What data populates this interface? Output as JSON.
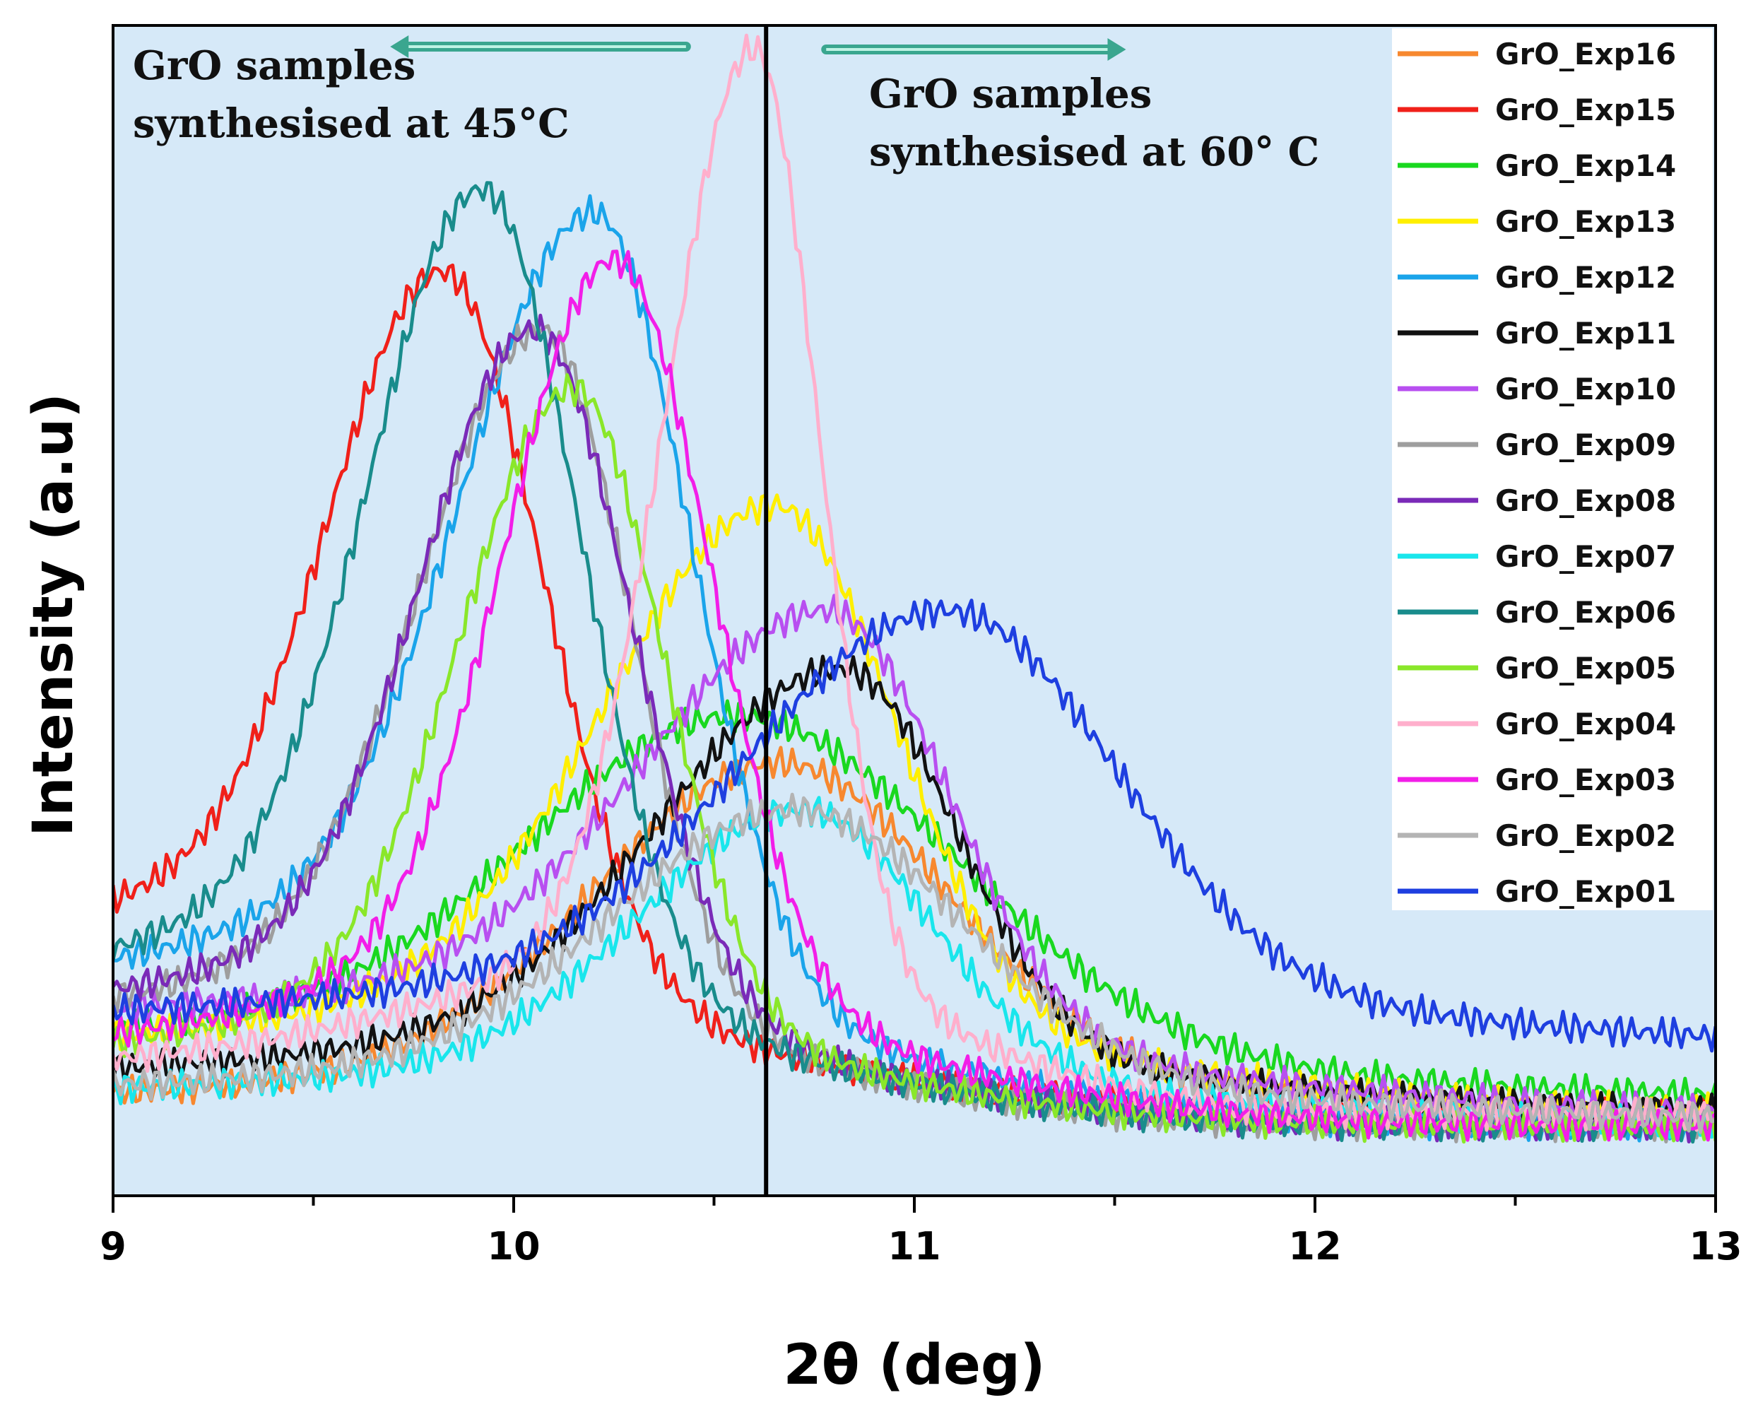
{
  "chart_data": {
    "type": "line",
    "title": "",
    "xlabel": "2θ (deg)",
    "ylabel": "Intensity (a.u)",
    "xlim": [
      9,
      13
    ],
    "ylim": [
      0,
      100
    ],
    "xticks": [
      "9",
      "10",
      "11",
      "12",
      "13"
    ],
    "divider_x": 10.63,
    "background": "#d6e9f8",
    "annotations": [
      {
        "name": "annotation-45c",
        "lines": [
          "GrO samples",
          "synthesised at 45°C"
        ],
        "arrow": "left",
        "arrow_from": 10.43,
        "arrow_to": 9.72
      },
      {
        "name": "annotation-60c",
        "lines": [
          "GrO samples",
          "synthesised at 60° C"
        ],
        "arrow": "right",
        "arrow_from": 10.78,
        "arrow_to": 11.5
      }
    ],
    "legend_position": "top-right",
    "series": [
      {
        "name": "GrO_Exp16",
        "color": "#f7882f",
        "peak_x": 10.66,
        "peak_y": 37,
        "sigma_left": 0.45,
        "sigma_right": 0.42,
        "base": 7,
        "tail": 6
      },
      {
        "name": "GrO_Exp15",
        "color": "#f0201a",
        "peak_x": 9.82,
        "peak_y": 79,
        "sigma_left": 0.28,
        "sigma_right": 0.25,
        "base": 20,
        "tail": 7
      },
      {
        "name": "GrO_Exp14",
        "color": "#19d81f",
        "peak_x": 10.55,
        "peak_y": 41,
        "sigma_left": 0.5,
        "sigma_right": 0.55,
        "base": 12,
        "tail": 7
      },
      {
        "name": "GrO_Exp13",
        "color": "#ffef00",
        "peak_x": 10.65,
        "peak_y": 59,
        "sigma_left": 0.42,
        "sigma_right": 0.3,
        "base": 11,
        "tail": 7
      },
      {
        "name": "GrO_Exp12",
        "color": "#1aa4ea",
        "peak_x": 10.2,
        "peak_y": 84,
        "sigma_left": 0.33,
        "sigma_right": 0.24,
        "base": 16,
        "tail": 6
      },
      {
        "name": "GrO_Exp11",
        "color": "#111111",
        "peak_x": 10.82,
        "peak_y": 45,
        "sigma_left": 0.45,
        "sigma_right": 0.28,
        "base": 9,
        "tail": 7
      },
      {
        "name": "GrO_Exp10",
        "color": "#b84ff0",
        "peak_x": 10.78,
        "peak_y": 50,
        "sigma_left": 0.45,
        "sigma_right": 0.3,
        "base": 14,
        "tail": 7
      },
      {
        "name": "GrO_Exp09",
        "color": "#9e9e9e",
        "peak_x": 10.07,
        "peak_y": 74,
        "sigma_left": 0.3,
        "sigma_right": 0.22,
        "base": 13,
        "tail": 6
      },
      {
        "name": "GrO_Exp08",
        "color": "#7a2ab8",
        "peak_x": 10.05,
        "peak_y": 74,
        "sigma_left": 0.28,
        "sigma_right": 0.24,
        "base": 14,
        "tail": 6
      },
      {
        "name": "GrO_Exp07",
        "color": "#19e6ec",
        "peak_x": 10.72,
        "peak_y": 33,
        "sigma_left": 0.4,
        "sigma_right": 0.32,
        "base": 8,
        "tail": 6
      },
      {
        "name": "GrO_Exp06",
        "color": "#198c8c",
        "peak_x": 9.92,
        "peak_y": 86,
        "sigma_left": 0.28,
        "sigma_right": 0.24,
        "base": 16,
        "tail": 6
      },
      {
        "name": "GrO_Exp05",
        "color": "#8ae72a",
        "peak_x": 10.15,
        "peak_y": 69,
        "sigma_left": 0.28,
        "sigma_right": 0.22,
        "base": 10,
        "tail": 6
      },
      {
        "name": "GrO_Exp04",
        "color": "#ffafcc",
        "peak_x": 10.6,
        "peak_y": 98,
        "sigma_left": 0.22,
        "sigma_right": 0.16,
        "base": 11,
        "tail": 7
      },
      {
        "name": "GrO_Exp03",
        "color": "#f21ee8",
        "peak_x": 10.25,
        "peak_y": 80,
        "sigma_left": 0.27,
        "sigma_right": 0.24,
        "base": 11,
        "tail": 6
      },
      {
        "name": "GrO_Exp02",
        "color": "#b4b4b4",
        "peak_x": 10.7,
        "peak_y": 33,
        "sigma_left": 0.45,
        "sigma_right": 0.42,
        "base": 8,
        "tail": 6
      },
      {
        "name": "GrO_Exp01",
        "color": "#1e3fe0",
        "peak_x": 11.08,
        "peak_y": 50,
        "sigma_left": 0.5,
        "sigma_right": 0.42,
        "base": 14,
        "tail": 12
      }
    ]
  }
}
